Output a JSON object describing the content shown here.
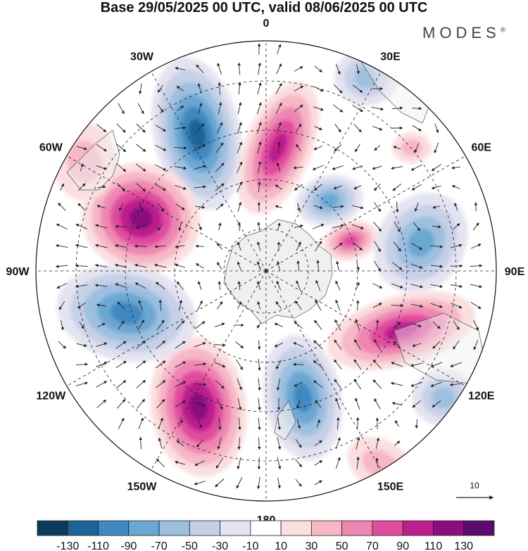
{
  "header": {
    "title": "Base 29/05/2025 00 UTC, valid 08/06/2025 00 UTC",
    "brand": "MODES",
    "brand_mark": "®"
  },
  "map": {
    "projection": "south-polar-stereographic",
    "longitude_labels": [
      "0",
      "30E",
      "60E",
      "90E",
      "120E",
      "150E",
      "180",
      "150W",
      "120W",
      "90W",
      "60W",
      "30W"
    ],
    "reference_vector_label": "10",
    "land_color": "#f0f0f0"
  },
  "colorbar": {
    "colors": [
      "#0b3b5c",
      "#1f6396",
      "#3f88c0",
      "#6aa7d3",
      "#9dbfe0",
      "#c6d0e6",
      "#e4e3f1",
      "#ffffff",
      "#fbdedf",
      "#f6b7c6",
      "#ef86b2",
      "#e14c9f",
      "#bc1f8e",
      "#8a0e80",
      "#5a0b6e"
    ],
    "tick_labels": [
      "-130",
      "-110",
      "-90",
      "-70",
      "-50",
      "-30",
      "-10",
      "10",
      "30",
      "50",
      "70",
      "90",
      "110",
      "130"
    ]
  },
  "anomalies": [
    {
      "sign": "negative",
      "level": 5
    },
    {
      "sign": "positive",
      "level": 4
    },
    {
      "sign": "negative",
      "level": 3
    },
    {
      "sign": "positive",
      "level": 3
    },
    {
      "sign": "negative",
      "level": 3
    },
    {
      "sign": "positive",
      "level": 4
    },
    {
      "sign": "negative",
      "level": 2
    },
    {
      "sign": "positive",
      "level": 5
    },
    {
      "sign": "negative",
      "level": 4
    },
    {
      "sign": "positive",
      "level": 5
    },
    {
      "sign": "negative",
      "level": 4
    },
    {
      "sign": "positive",
      "level": 1
    },
    {
      "sign": "negative",
      "level": 2
    },
    {
      "sign": "positive",
      "level": 1
    },
    {
      "sign": "negative",
      "level": 1
    },
    {
      "sign": "positive",
      "level": 1
    }
  ]
}
